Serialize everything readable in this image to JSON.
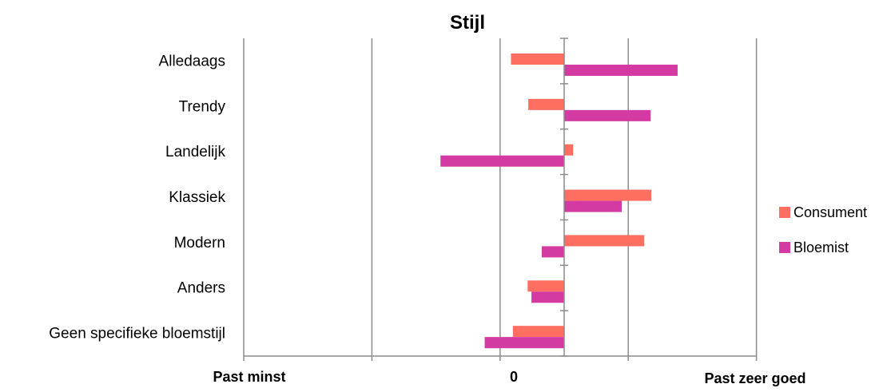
{
  "chart_data": {
    "type": "bar",
    "orientation": "horizontal",
    "title": "Stijl",
    "categories": [
      "Alledaags",
      "Trendy",
      "Landelijk",
      "Klassiek",
      "Modern",
      "Anders",
      "Geen specifieke bloemstijl"
    ],
    "series": [
      {
        "name": "Consument",
        "color": "#ff6f61",
        "values": [
          -0.83,
          -0.56,
          0.14,
          1.36,
          1.25,
          -0.57,
          -0.8
        ]
      },
      {
        "name": "Bloemist",
        "color": "#d33aa2",
        "values": [
          1.77,
          1.35,
          -1.93,
          0.9,
          -0.35,
          -0.51,
          -1.24
        ]
      }
    ],
    "xlim": [
      -5,
      3
    ],
    "x_gridlines": [
      -5,
      -3,
      -1,
      1,
      3
    ],
    "x_tick_labels": {
      "left": "Past minst",
      "center": "0",
      "right": "Past zeer goed"
    },
    "legend_position": "right",
    "grid": true
  }
}
